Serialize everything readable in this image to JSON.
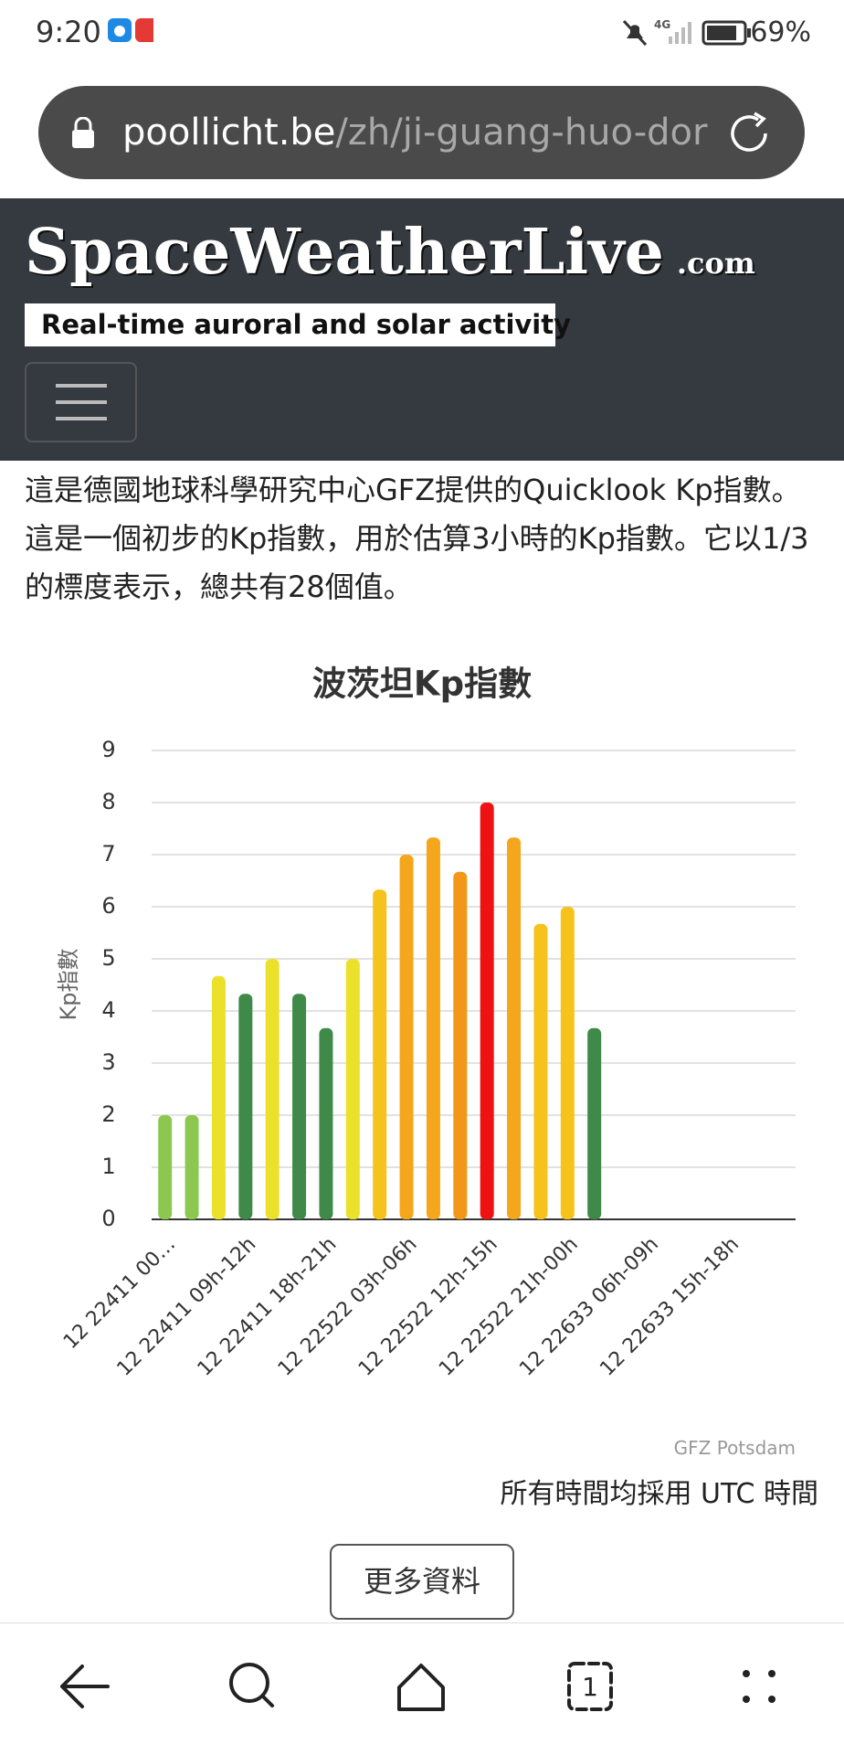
{
  "status": {
    "time": "9:20",
    "network": "4G",
    "battery": "69%"
  },
  "url": {
    "host": "poollicht.be",
    "path": "/zh/ji-guang-huo-dor"
  },
  "header": {
    "logo": "SpaceWeatherLive",
    "domain": ".com",
    "tagline": "Real-time auroral and solar activity"
  },
  "article": {
    "paragraph": "這是德國地球科學研究中心GFZ提供的Quicklook Kp指數。這是一個初步的Kp指數，用於估算3小時的Kp指數。它以1/3的標度表示，總共有28個值。"
  },
  "chart_data": {
    "type": "bar",
    "title": "波茨坦Kp指數",
    "y_label": "Kp指數",
    "categories": [
      "12 22411 00…",
      null,
      null,
      "12 22411 09h-12h",
      null,
      null,
      "12 22411 18h-21h",
      null,
      null,
      "12 22522 03h-06h",
      null,
      null,
      "12 22522 12h-15h",
      null,
      null,
      "12 22522 21h-00h",
      null,
      null,
      "12 22633 06h-09h",
      null,
      null,
      "12 22633 15h-18h",
      null,
      null
    ],
    "values": [
      2,
      2,
      4.67,
      4.33,
      5,
      4.33,
      3.67,
      5,
      6.33,
      7,
      7.33,
      6.67,
      8,
      7.33,
      5.67,
      6,
      3.67,
      null,
      null,
      null,
      null,
      null,
      null,
      null
    ],
    "colors": [
      "#8cc850",
      "#8cc850",
      "#ece12a",
      "#3f8a48",
      "#ece12a",
      "#3f8a48",
      "#3f8a48",
      "#ece12a",
      "#f6c21c",
      "#f4a61c",
      "#f4a61c",
      "#f29718",
      "#ee1212",
      "#f4a61c",
      "#f6c21c",
      "#f6c21c",
      "#3f8a48",
      null,
      null,
      null,
      null,
      null,
      null,
      null
    ],
    "ylim": [
      0,
      9
    ],
    "yticks": [
      0,
      1,
      2,
      3,
      4,
      5,
      6,
      7,
      8,
      9
    ],
    "grid": true,
    "credit": "GFZ Potsdam"
  },
  "note": "所有時間均採用 UTC 時間",
  "button": "更多資料",
  "nav": {
    "tab_count": "1"
  }
}
